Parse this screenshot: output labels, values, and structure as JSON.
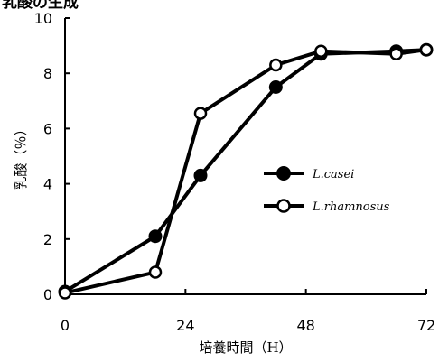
{
  "chart_data": {
    "type": "line",
    "title": "乳酸の生成",
    "xlabel": "培養時間（H）",
    "ylabel": "乳酸（％）",
    "xlim": [
      0,
      72
    ],
    "ylim": [
      0,
      10
    ],
    "xticks": [
      0,
      24,
      48,
      72
    ],
    "yticks": [
      0,
      2,
      4,
      6,
      8,
      10
    ],
    "grid": false,
    "legend_position": "center-right",
    "series": [
      {
        "name": "L.casei",
        "marker": "filled-circle",
        "color": "#000000",
        "x": [
          0,
          18,
          27,
          42,
          51,
          66,
          72
        ],
        "y": [
          0.1,
          2.1,
          4.3,
          7.5,
          8.7,
          8.8,
          8.85
        ]
      },
      {
        "name": "L.rhamnosus",
        "marker": "open-circle",
        "color": "#000000",
        "x": [
          0,
          18,
          27,
          42,
          51,
          66,
          72
        ],
        "y": [
          0.05,
          0.8,
          6.55,
          8.3,
          8.8,
          8.7,
          8.85
        ]
      }
    ]
  }
}
